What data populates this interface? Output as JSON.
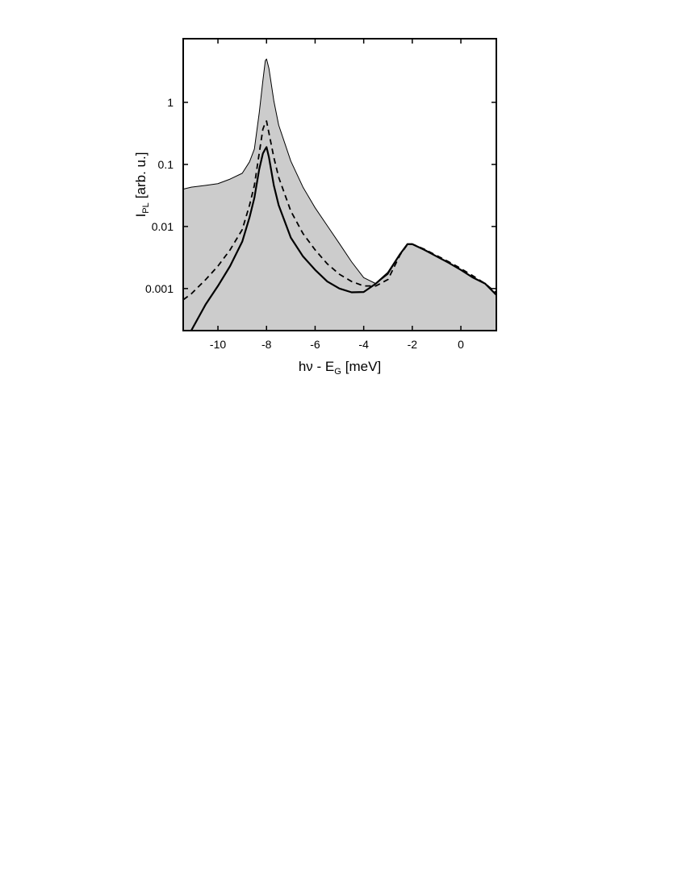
{
  "chart_data": {
    "type": "line",
    "xlabel": {
      "text": "hν - E",
      "sub": "G",
      "rest": "[meV]"
    },
    "ylabel": {
      "text": "I",
      "sub": "PL",
      "rest": "[arb. u.]"
    },
    "x": [
      -11.43,
      -11.1,
      -10.5,
      -10,
      -9.5,
      -9,
      -8.7,
      -8.5,
      -8.3,
      -8.15,
      -8.05,
      -8,
      -7.9,
      -7.7,
      -7.5,
      -7,
      -6.5,
      -6,
      -5.5,
      -5,
      -4.5,
      -4,
      -3.5,
      -3,
      -2.5,
      -2.2,
      -2,
      -1.5,
      -1,
      -0.5,
      0,
      0.5,
      1,
      1.46
    ],
    "series": [
      {
        "color": "#000000",
        "fill": "#cccccc",
        "width": 1,
        "dash": "none",
        "values": [
          0.04,
          0.043,
          0.046,
          0.049,
          0.058,
          0.072,
          0.11,
          0.177,
          0.68,
          2.24,
          4.7,
          5.0,
          3.5,
          1.06,
          0.43,
          0.113,
          0.043,
          0.02,
          0.0103,
          0.0053,
          0.0027,
          0.0015,
          0.0012,
          0.0017,
          0.0036,
          0.0052,
          0.0052,
          0.0042,
          0.0033,
          0.0026,
          0.002,
          0.0015,
          0.0012,
          0.00079
        ]
      },
      {
        "color": "#000000",
        "width": 1.8,
        "dash": "7,5",
        "values": [
          0.00066,
          0.00082,
          0.0014,
          0.0023,
          0.0042,
          0.0089,
          0.022,
          0.046,
          0.152,
          0.37,
          0.47,
          0.5,
          0.32,
          0.13,
          0.062,
          0.0177,
          0.0077,
          0.0042,
          0.0025,
          0.0017,
          0.0013,
          0.0011,
          0.0011,
          0.0014,
          0.0035,
          0.0051,
          0.0052,
          0.0043,
          0.0034,
          0.0027,
          0.0021,
          0.0016,
          0.0012,
          0.00085
        ]
      },
      {
        "color": "#000000",
        "width": 2.2,
        "dash": "none",
        "values": [
          null,
          0.00021,
          0.00056,
          0.0011,
          0.0023,
          0.0057,
          0.014,
          0.029,
          0.084,
          0.15,
          0.177,
          0.19,
          0.13,
          0.046,
          0.022,
          0.0066,
          0.0033,
          0.002,
          0.0013,
          0.001,
          0.00087,
          0.00088,
          0.0012,
          0.0018,
          0.0036,
          0.0052,
          0.0052,
          0.0042,
          0.0033,
          0.0026,
          0.002,
          0.0015,
          0.0012,
          0.00079
        ]
      }
    ],
    "xlim": [
      -11.43,
      1.46
    ],
    "xticks": [
      -10,
      -8,
      -6,
      -4,
      -2,
      0
    ],
    "ylim": [
      0.00021,
      10.6
    ],
    "yticks": [
      0.001,
      0.01,
      0.1,
      1
    ],
    "ylog": true
  }
}
